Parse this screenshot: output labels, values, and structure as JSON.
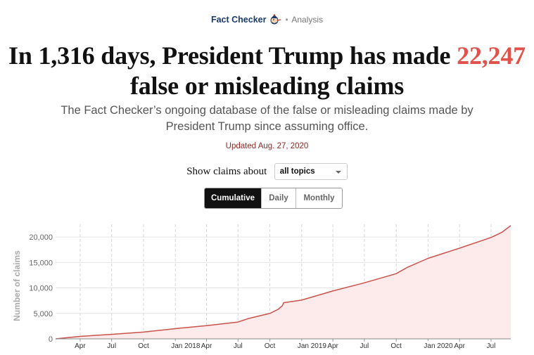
{
  "header": {
    "section": "Fact Checker",
    "label": "Analysis",
    "mascot_icon": "pinocchio-icon"
  },
  "headline": {
    "part1": "In 1,316 days, President Trump has made ",
    "highlight": "22,247",
    "part2": " false or misleading claims",
    "highlight_color": "#e0524b"
  },
  "deck": "The Fact Checker’s ongoing database of the false or misleading claims made by President Trump since assuming office.",
  "updated": "Updated Aug. 27, 2020",
  "filter": {
    "label": "Show claims about",
    "selected": "all topics"
  },
  "tabs": [
    {
      "label": "Cumulative",
      "active": true
    },
    {
      "label": "Daily",
      "active": false
    },
    {
      "label": "Monthly",
      "active": false
    }
  ],
  "chart_data": {
    "type": "area",
    "ylabel": "Number of claims",
    "ylim": [
      0,
      22500
    ],
    "yticks": [
      0,
      5000,
      10000,
      15000,
      20000
    ],
    "ytick_labels": [
      "0",
      "5,000",
      "10,000",
      "15,000",
      "20,000"
    ],
    "xlim": [
      "2017-01-20",
      "2020-08-27"
    ],
    "xticks": [
      {
        "date": "2017-04-01",
        "label": "Apr",
        "year_marker": false
      },
      {
        "date": "2017-07-01",
        "label": "Jul",
        "year_marker": false
      },
      {
        "date": "2017-10-01",
        "label": "Oct",
        "year_marker": false
      },
      {
        "date": "2018-01-01",
        "label": "Jan 2018",
        "year_marker": true
      },
      {
        "date": "2018-04-01",
        "label": "Apr",
        "year_marker": false
      },
      {
        "date": "2018-07-01",
        "label": "Jul",
        "year_marker": false
      },
      {
        "date": "2018-10-01",
        "label": "Oct",
        "year_marker": false
      },
      {
        "date": "2019-01-01",
        "label": "Jan 2019",
        "year_marker": true
      },
      {
        "date": "2019-04-01",
        "label": "Apr",
        "year_marker": false
      },
      {
        "date": "2019-07-01",
        "label": "Jul",
        "year_marker": false
      },
      {
        "date": "2019-10-01",
        "label": "Oct",
        "year_marker": false
      },
      {
        "date": "2020-01-01",
        "label": "Jan 2020",
        "year_marker": true
      },
      {
        "date": "2020-04-01",
        "label": "Apr",
        "year_marker": false
      },
      {
        "date": "2020-07-01",
        "label": "Jul",
        "year_marker": false
      }
    ],
    "points": [
      {
        "x": "2017-01-20",
        "y": 0
      },
      {
        "x": "2017-04-01",
        "y": 490
      },
      {
        "x": "2017-07-01",
        "y": 890
      },
      {
        "x": "2017-10-01",
        "y": 1320
      },
      {
        "x": "2018-01-01",
        "y": 2000
      },
      {
        "x": "2018-04-01",
        "y": 2600
      },
      {
        "x": "2018-07-01",
        "y": 3300
      },
      {
        "x": "2018-08-01",
        "y": 4000
      },
      {
        "x": "2018-10-01",
        "y": 5000
      },
      {
        "x": "2018-10-25",
        "y": 5800
      },
      {
        "x": "2018-11-06",
        "y": 6500
      },
      {
        "x": "2018-11-10",
        "y": 7100
      },
      {
        "x": "2019-01-01",
        "y": 7600
      },
      {
        "x": "2019-04-01",
        "y": 9400
      },
      {
        "x": "2019-07-01",
        "y": 11000
      },
      {
        "x": "2019-10-01",
        "y": 12800
      },
      {
        "x": "2019-11-01",
        "y": 14000
      },
      {
        "x": "2020-01-01",
        "y": 15800
      },
      {
        "x": "2020-04-01",
        "y": 17800
      },
      {
        "x": "2020-07-01",
        "y": 19900
      },
      {
        "x": "2020-08-01",
        "y": 20900
      },
      {
        "x": "2020-08-27",
        "y": 22247
      }
    ],
    "line_color": "#c9524b",
    "fill_color": "#fdeaea",
    "grid": true
  }
}
